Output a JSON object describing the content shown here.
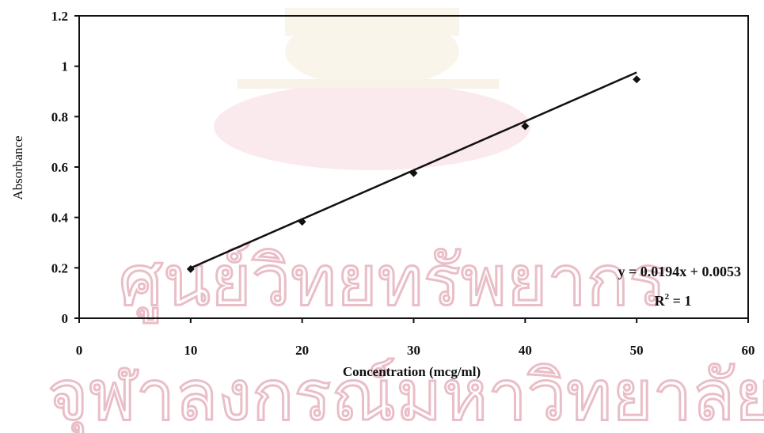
{
  "watermark": {
    "line1": "ศูนย์วิทยทรัพยากร",
    "line2": "จุฬาลงกรณ์มหาวิทยาลัย"
  },
  "chart_data": {
    "type": "scatter",
    "series": [
      {
        "x": [
          10,
          20,
          30,
          40,
          50
        ],
        "y": [
          0.195,
          0.383,
          0.576,
          0.762,
          0.948
        ]
      }
    ],
    "trendline": {
      "type": "linear",
      "slope": 0.0194,
      "intercept": 0.0053,
      "x_range": [
        10,
        50
      ]
    },
    "xlabel": "Concentration (mcg/ml)",
    "ylabel": "Absorbance",
    "xlim": [
      0,
      60
    ],
    "ylim": [
      0,
      1.2
    ],
    "xticks": [
      "0",
      "10",
      "20",
      "30",
      "40",
      "50",
      "60"
    ],
    "yticks": [
      "0",
      "0.2",
      "0.4",
      "0.6",
      "0.8",
      "1",
      "1.2"
    ],
    "annotation": {
      "equation": "y = 0.0194x + 0.0053",
      "r2_prefix": "R",
      "r2_sup": "2",
      "r2_suffix": " = 1"
    },
    "grid": false,
    "legend": "none",
    "colors": {
      "line": "#111111",
      "marker": "#111111",
      "watermark": "#d88a9a"
    }
  }
}
